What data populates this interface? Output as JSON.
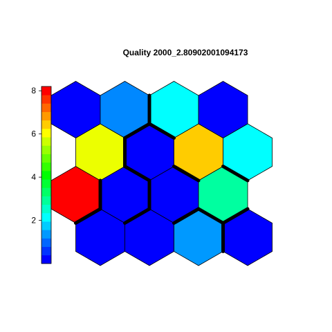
{
  "chart_data": {
    "type": "heatmap",
    "title": "Quality 2000_2.80902001094173",
    "colorbar": {
      "range": [
        0,
        8.2
      ],
      "ticks": [
        2,
        4,
        6,
        8
      ],
      "colors": [
        "#0000ff",
        "#0033ff",
        "#0066ff",
        "#0099ff",
        "#00ccff",
        "#00ffff",
        "#00ffcc",
        "#00ff99",
        "#00ff66",
        "#00ff33",
        "#00ff00",
        "#33ff00",
        "#66ff00",
        "#99ff00",
        "#ccff00",
        "#ffff00",
        "#ffcc00",
        "#ff9900",
        "#ff6600",
        "#ff3300",
        "#ff0000"
      ]
    },
    "grid": {
      "layout": "hexagonal",
      "rows": 4,
      "cols": 4,
      "cells": [
        {
          "row": 1,
          "col": 1,
          "value": 0.3,
          "color": "#0000ff"
        },
        {
          "row": 1,
          "col": 2,
          "value": 0.3,
          "color": "#0000ff"
        },
        {
          "row": 1,
          "col": 3,
          "value": 1.6,
          "color": "#0099ff"
        },
        {
          "row": 1,
          "col": 4,
          "value": 0.3,
          "color": "#0000ff"
        },
        {
          "row": 2,
          "col": 1,
          "value": 8.0,
          "color": "#ff0000"
        },
        {
          "row": 2,
          "col": 2,
          "value": 0.3,
          "color": "#0000ff"
        },
        {
          "row": 2,
          "col": 3,
          "value": 0.3,
          "color": "#0000ff"
        },
        {
          "row": 2,
          "col": 4,
          "value": 3.0,
          "color": "#00ffa0"
        },
        {
          "row": 3,
          "col": 1,
          "value": 6.0,
          "color": "#ecff00"
        },
        {
          "row": 3,
          "col": 2,
          "value": 0.3,
          "color": "#0000ff"
        },
        {
          "row": 3,
          "col": 3,
          "value": 6.5,
          "color": "#ffcc00"
        },
        {
          "row": 3,
          "col": 4,
          "value": 2.3,
          "color": "#00ffff"
        },
        {
          "row": 4,
          "col": 1,
          "value": 0.3,
          "color": "#0000ff"
        },
        {
          "row": 4,
          "col": 2,
          "value": 1.6,
          "color": "#0088ff"
        },
        {
          "row": 4,
          "col": 3,
          "value": 2.3,
          "color": "#00ffff"
        },
        {
          "row": 4,
          "col": 4,
          "value": 0.3,
          "color": "#0000ff"
        }
      ],
      "boundaries": [
        {
          "from": [
            1,
            2
          ],
          "to": [
            2,
            2
          ]
        },
        {
          "from": [
            1,
            3
          ],
          "to": [
            2,
            3
          ]
        },
        {
          "from": [
            1,
            3
          ],
          "to": [
            1,
            4
          ]
        },
        {
          "from": [
            1,
            3
          ],
          "to": [
            2,
            4
          ]
        },
        {
          "from": [
            1,
            4
          ],
          "to": [
            2,
            4
          ]
        },
        {
          "from": [
            2,
            1
          ],
          "to": [
            1,
            1
          ]
        },
        {
          "from": [
            2,
            1
          ],
          "to": [
            2,
            2
          ]
        },
        {
          "from": [
            2,
            2
          ],
          "to": [
            3,
            2
          ]
        },
        {
          "from": [
            2,
            2
          ],
          "to": [
            2,
            3
          ]
        },
        {
          "from": [
            2,
            3
          ],
          "to": [
            3,
            3
          ]
        },
        {
          "from": [
            2,
            4
          ],
          "to": [
            3,
            4
          ]
        },
        {
          "from": [
            3,
            1
          ],
          "to": [
            3,
            2
          ]
        },
        {
          "from": [
            3,
            2
          ],
          "to": [
            4,
            2
          ]
        },
        {
          "from": [
            3,
            2
          ],
          "to": [
            4,
            3
          ]
        },
        {
          "from": [
            4,
            2
          ],
          "to": [
            4,
            3
          ]
        }
      ]
    }
  }
}
